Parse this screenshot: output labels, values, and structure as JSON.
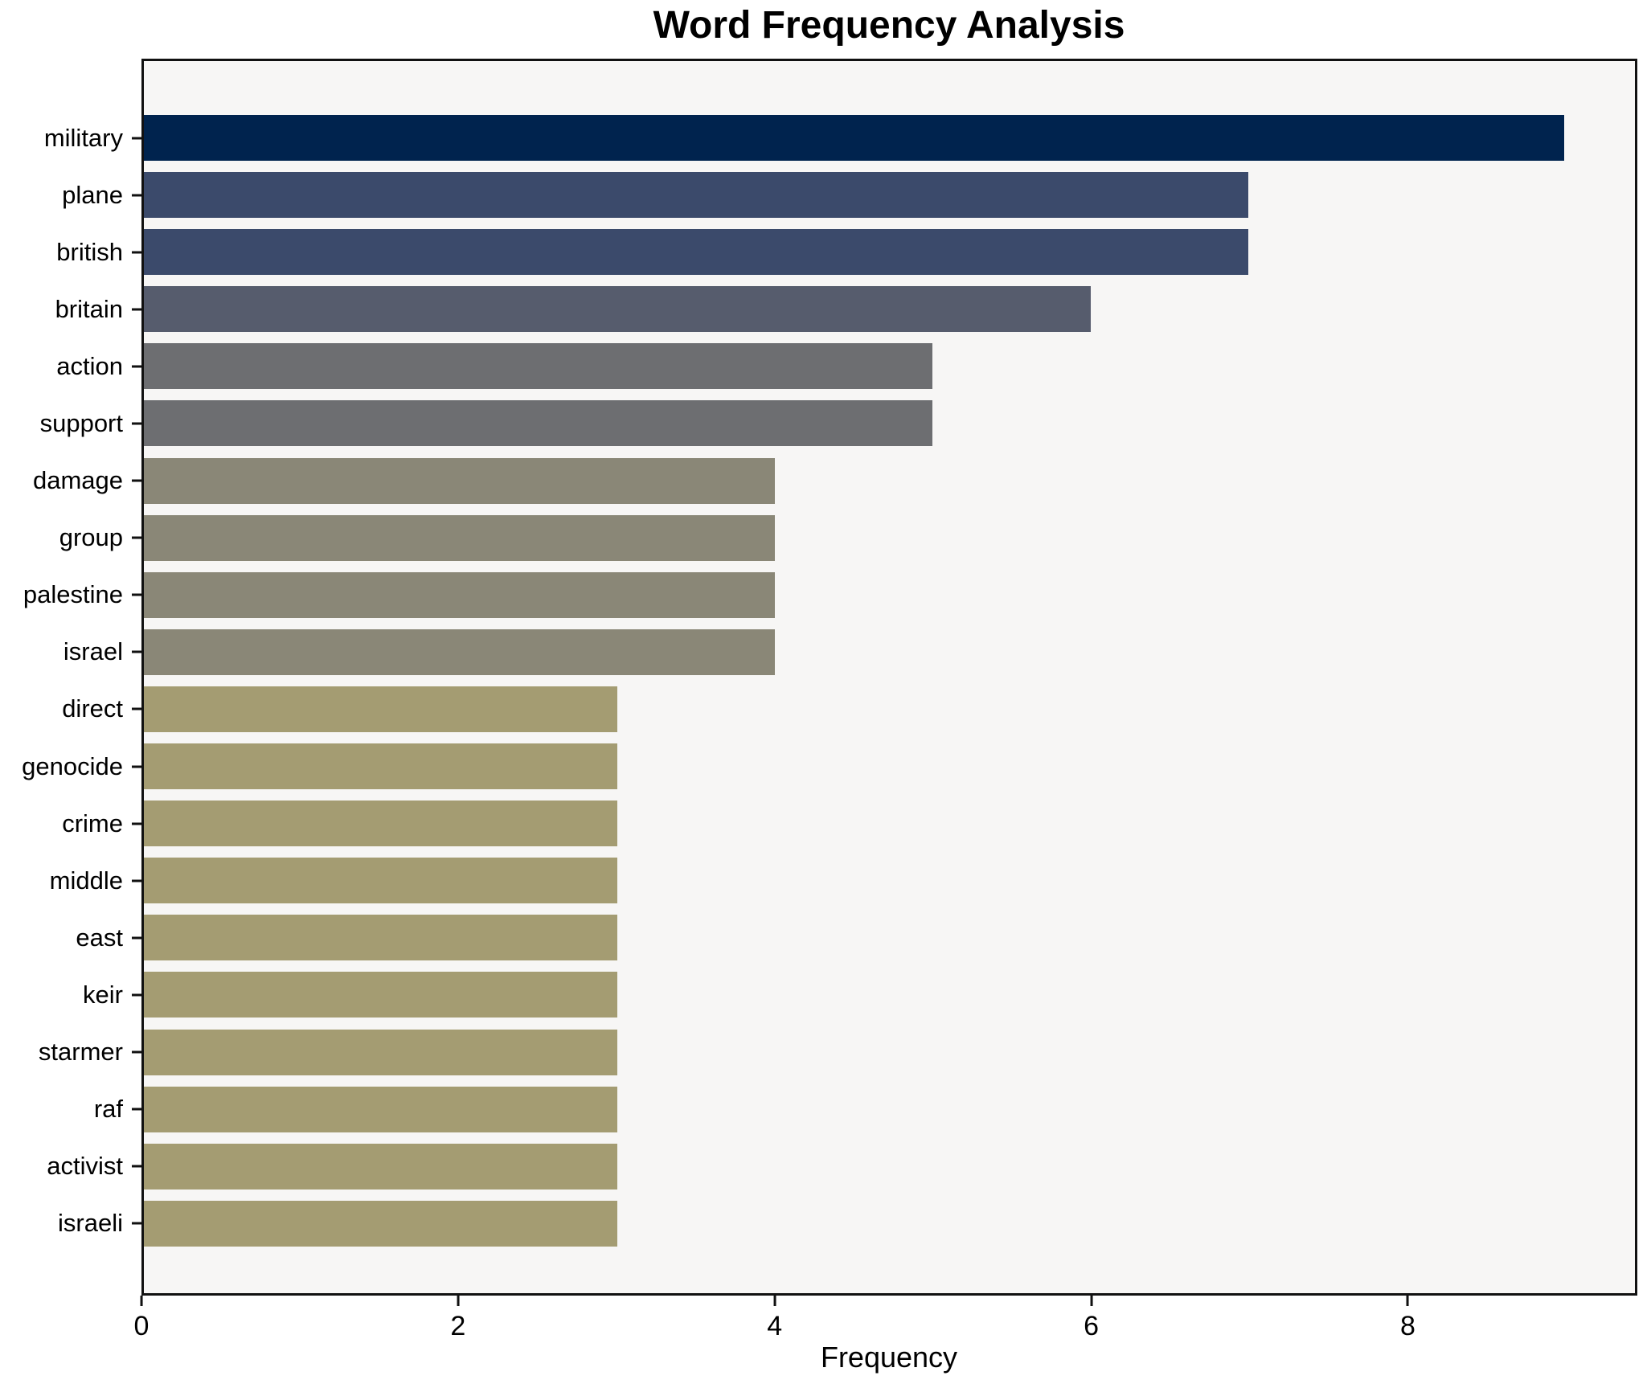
{
  "chart_data": {
    "type": "bar",
    "orientation": "horizontal",
    "title": "Word Frequency Analysis",
    "xlabel": "Frequency",
    "ylabel": "",
    "categories": [
      "military",
      "plane",
      "british",
      "britain",
      "action",
      "support",
      "damage",
      "group",
      "palestine",
      "israel",
      "direct",
      "genocide",
      "crime",
      "middle",
      "east",
      "keir",
      "starmer",
      "raf",
      "activist",
      "israeli"
    ],
    "values": [
      9,
      7,
      7,
      6,
      5,
      5,
      4,
      4,
      4,
      4,
      3,
      3,
      3,
      3,
      3,
      3,
      3,
      3,
      3,
      3
    ],
    "bar_colors": [
      "#00234e",
      "#3b4a6b",
      "#3b4a6b",
      "#565c6d",
      "#6d6e71",
      "#6d6e71",
      "#8a8777",
      "#8a8777",
      "#8a8777",
      "#8a8777",
      "#a49c72",
      "#a49c72",
      "#a49c72",
      "#a49c72",
      "#a49c72",
      "#a49c72",
      "#a49c72",
      "#a49c72",
      "#a49c72",
      "#a49c72"
    ],
    "xticks": [
      0,
      2,
      4,
      6,
      8
    ],
    "xlim": [
      0,
      9.45
    ],
    "grid": false,
    "legend": "none",
    "plot_background": "#f7f6f5",
    "figure_background": "#ffffff",
    "spine_color": "#111111",
    "text_color": "#000000"
  }
}
